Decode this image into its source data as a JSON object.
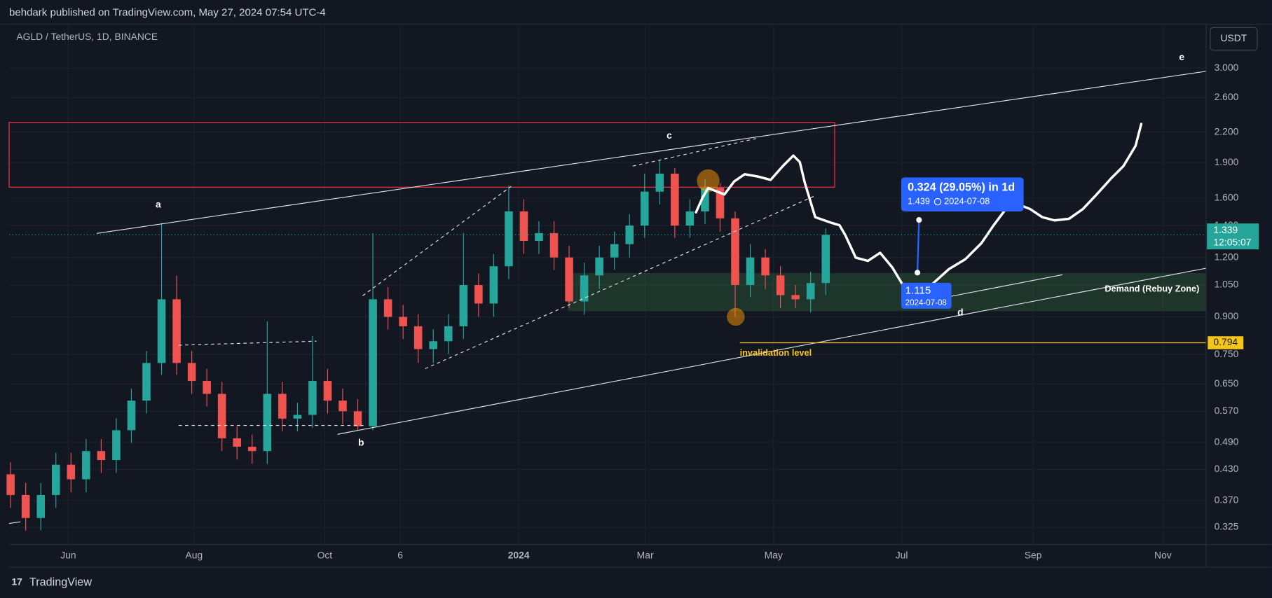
{
  "header": {
    "title": "behdark published on TradingView.com, May 27, 2024 07:54 UTC-4"
  },
  "footer": {
    "brand": "TradingView"
  },
  "chart_data": {
    "type": "candlestick",
    "title": "AGLD / TetherUS, 1D, BINANCE",
    "unit": "USDT",
    "log_scale": true,
    "grid": true,
    "up_color": "#26a69a",
    "down_color": "#ef5350",
    "open": [
      0.42,
      0.38,
      0.34,
      0.38,
      0.44,
      0.41,
      0.47,
      0.45,
      0.52,
      0.6,
      0.72,
      0.98,
      0.72,
      0.66,
      0.62,
      0.5,
      0.48,
      0.47,
      0.62,
      0.55,
      0.56,
      0.66,
      0.6,
      0.57,
      0.53,
      0.98,
      0.9,
      0.86,
      0.77,
      0.8,
      0.86,
      1.05,
      0.96,
      1.15,
      1.5,
      1.3,
      1.35,
      1.2,
      0.97,
      1.1,
      1.2,
      1.28,
      1.4,
      1.65,
      1.8,
      1.4,
      1.5,
      1.68,
      1.45,
      1.05,
      1.2,
      1.1,
      1.0,
      0.98,
      1.06
    ],
    "high": [
      0.445,
      0.403,
      0.403,
      0.466,
      0.466,
      0.498,
      0.498,
      0.551,
      0.636,
      0.763,
      1.42,
      1.1,
      0.763,
      0.7,
      0.657,
      0.53,
      0.509,
      0.88,
      0.657,
      0.594,
      0.82,
      0.7,
      0.636,
      0.604,
      1.35,
      1.04,
      0.954,
      0.912,
      0.848,
      0.912,
      1.35,
      1.11,
      1.22,
      1.7,
      1.59,
      1.43,
      1.43,
      1.27,
      1.17,
      1.27,
      1.36,
      1.48,
      1.8,
      1.92,
      1.85,
      1.59,
      1.75,
      1.72,
      1.5,
      1.28,
      1.25,
      1.15,
      1.05,
      1.12,
      1.38
    ],
    "low": [
      0.357,
      0.32,
      0.32,
      0.357,
      0.385,
      0.385,
      0.423,
      0.423,
      0.489,
      0.564,
      0.68,
      0.68,
      0.62,
      0.583,
      0.47,
      0.451,
      0.442,
      0.442,
      0.517,
      0.517,
      0.526,
      0.564,
      0.536,
      0.52,
      0.52,
      0.846,
      0.808,
      0.72,
      0.72,
      0.752,
      0.808,
      0.9,
      0.9,
      1.08,
      1.22,
      1.22,
      1.13,
      0.94,
      0.91,
      1.03,
      1.13,
      1.2,
      1.32,
      1.55,
      1.32,
      1.32,
      1.41,
      1.36,
      0.9,
      0.99,
      1.03,
      0.94,
      0.94,
      0.92,
      1.0
    ],
    "close": [
      0.38,
      0.34,
      0.38,
      0.44,
      0.41,
      0.47,
      0.45,
      0.52,
      0.6,
      0.72,
      0.98,
      0.72,
      0.66,
      0.62,
      0.5,
      0.48,
      0.47,
      0.62,
      0.55,
      0.56,
      0.66,
      0.6,
      0.57,
      0.53,
      0.98,
      0.9,
      0.86,
      0.77,
      0.8,
      0.86,
      1.05,
      0.96,
      1.15,
      1.5,
      1.3,
      1.35,
      1.2,
      0.97,
      1.1,
      1.2,
      1.28,
      1.4,
      1.65,
      1.8,
      1.4,
      1.5,
      1.68,
      1.45,
      1.05,
      1.2,
      1.1,
      1.0,
      0.98,
      1.06,
      1.339
    ],
    "ylim": [
      0.299,
      3.666
    ],
    "yticks": [
      {
        "value": 3,
        "label": "3.000"
      },
      {
        "value": 2.6,
        "label": "2.600"
      },
      {
        "value": 2.2,
        "label": "2.200"
      },
      {
        "value": 1.9,
        "label": "1.900"
      },
      {
        "value": 1.6,
        "label": "1.600"
      },
      {
        "value": 1.4,
        "label": "1.400"
      },
      {
        "value": 1.2,
        "label": "1.200"
      },
      {
        "value": 1.05,
        "label": "1.050"
      },
      {
        "value": 0.9,
        "label": "0.900"
      },
      {
        "value": 0.75,
        "label": "0.750"
      },
      {
        "value": 0.65,
        "label": "0.650"
      },
      {
        "value": 0.57,
        "label": "0.570"
      },
      {
        "value": 0.49,
        "label": "0.490"
      },
      {
        "value": 0.43,
        "label": "0.430"
      },
      {
        "value": 0.37,
        "label": "0.370"
      },
      0.325
    ],
    "xlim": [
      -0.1,
      79.2
    ],
    "xticks": [
      {
        "value": 3.82,
        "label": "Jun"
      },
      {
        "value": 12.15,
        "label": "Aug"
      },
      {
        "value": 20.81,
        "label": "Oct"
      },
      {
        "value": 25.81,
        "label": "6"
      },
      {
        "value": 33.66,
        "label": "2024"
      },
      {
        "value": 42.04,
        "label": "Mar"
      },
      {
        "value": 50.54,
        "label": "May"
      },
      {
        "value": 59.03,
        "label": "Jul"
      },
      {
        "value": 67.74,
        "label": "Sep"
      },
      {
        "value": 76.34,
        "label": "Nov"
      }
    ],
    "annotations": [
      "a",
      "b",
      "c",
      "d",
      "e",
      "Demand (Rebuy Zone)"
    ],
    "invalidation": {
      "value": 0.794,
      "label": "invalidation level"
    },
    "last_price": {
      "value": 1.339,
      "countdown": "12:05:07"
    },
    "projection": {
      "from": {
        "price": 1.115,
        "date": "2024-07-08"
      },
      "to": {
        "price": 1.439,
        "date": "2024-07-08",
        "change": "0.324 (29.05%) in 1d"
      }
    }
  }
}
